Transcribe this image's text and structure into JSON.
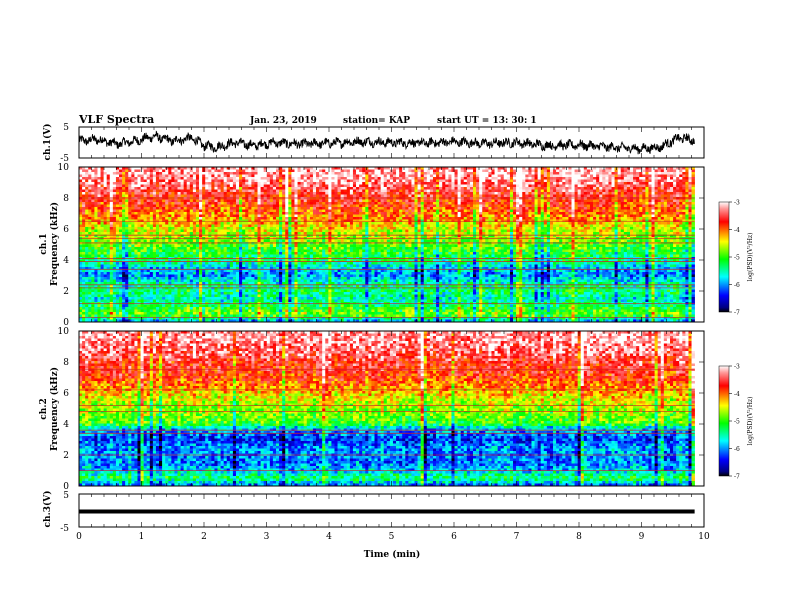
{
  "header": {
    "title": "VLF Spectra",
    "date": "Jan. 23, 2019",
    "station": "station= KAP",
    "start": "start  UT  =   13: 30: 1"
  },
  "chart_data": [
    {
      "type": "line",
      "name": "ch1-waveform",
      "ylabel": "ch.1(V)",
      "ylim": [
        -5,
        5
      ],
      "yticks": [
        "5",
        "-5"
      ],
      "xlim": [
        0,
        10
      ],
      "trend_points": [
        [
          0.0,
          0.5
        ],
        [
          0.3,
          1.0
        ],
        [
          0.6,
          -0.5
        ],
        [
          0.9,
          0.5
        ],
        [
          1.2,
          2.0
        ],
        [
          1.5,
          0.5
        ],
        [
          1.8,
          1.5
        ],
        [
          2.0,
          -1.0
        ],
        [
          2.2,
          -1.5
        ],
        [
          2.5,
          0.0
        ],
        [
          2.8,
          -1.0
        ],
        [
          3.1,
          0.0
        ],
        [
          3.5,
          -0.5
        ],
        [
          4.0,
          -0.2
        ],
        [
          4.5,
          0.3
        ],
        [
          5.0,
          0.0
        ],
        [
          5.5,
          -0.2
        ],
        [
          6.0,
          0.2
        ],
        [
          6.5,
          -0.3
        ],
        [
          7.0,
          0.0
        ],
        [
          7.5,
          -1.0
        ],
        [
          8.0,
          -0.8
        ],
        [
          8.5,
          -1.5
        ],
        [
          9.0,
          -2.0
        ],
        [
          9.3,
          -1.5
        ],
        [
          9.6,
          1.5
        ],
        [
          9.85,
          0.8
        ]
      ]
    },
    {
      "type": "heatmap",
      "name": "ch1-spectrogram",
      "ylabel": "ch.1",
      "ylabel2": "Frequency (kHz)",
      "ylim": [
        0,
        10
      ],
      "yticks": [
        "0",
        "2",
        "4",
        "6",
        "8",
        "10"
      ],
      "xlim": [
        0,
        10
      ],
      "data_end_min": 9.85,
      "colorbar": {
        "label": "log(PSD)(V²/Hz)",
        "range": [
          -7,
          -3
        ],
        "ticks": [
          "-3",
          "-4",
          "-5",
          "-6",
          "-7"
        ]
      },
      "level_profile": [
        [
          0.0,
          -6.0
        ],
        [
          0.5,
          -4.8
        ],
        [
          1.0,
          -5.2
        ],
        [
          1.5,
          -5.6
        ],
        [
          2.0,
          -5.3
        ],
        [
          2.5,
          -5.5
        ],
        [
          3.0,
          -6.0
        ],
        [
          3.5,
          -5.8
        ],
        [
          4.0,
          -5.3
        ],
        [
          4.5,
          -5.1
        ],
        [
          5.0,
          -4.9
        ],
        [
          5.5,
          -4.7
        ],
        [
          6.0,
          -4.5
        ],
        [
          6.5,
          -4.2
        ],
        [
          7.0,
          -4.0
        ],
        [
          7.5,
          -3.8
        ],
        [
          8.0,
          -3.7
        ],
        [
          8.5,
          -3.5
        ],
        [
          9.0,
          -3.3
        ],
        [
          9.5,
          -3.2
        ],
        [
          10.0,
          -3.2
        ]
      ],
      "line_freqs_khz": [
        0.3,
        1.2,
        2.2,
        2.4,
        3.4,
        3.9,
        4.1,
        5.1,
        5.4,
        5.6,
        6.5,
        8.0
      ]
    },
    {
      "type": "heatmap",
      "name": "ch2-spectrogram",
      "ylabel": "ch.2",
      "ylabel2": "Frequency (kHz)",
      "ylim": [
        0,
        10
      ],
      "yticks": [
        "0",
        "2",
        "4",
        "6",
        "8",
        "10"
      ],
      "xlim": [
        0,
        10
      ],
      "data_end_min": 9.85,
      "colorbar": {
        "label": "log(PSD)(V²/Hz)",
        "range": [
          -7,
          -3
        ],
        "ticks": [
          "-3",
          "-4",
          "-5",
          "-6",
          "-7"
        ]
      },
      "level_profile": [
        [
          0.0,
          -6.2
        ],
        [
          0.5,
          -5.2
        ],
        [
          1.0,
          -5.8
        ],
        [
          1.5,
          -6.1
        ],
        [
          2.0,
          -6.0
        ],
        [
          2.5,
          -6.0
        ],
        [
          3.0,
          -6.3
        ],
        [
          3.5,
          -6.0
        ],
        [
          3.8,
          -5.6
        ],
        [
          4.0,
          -5.0
        ],
        [
          4.5,
          -4.8
        ],
        [
          5.0,
          -4.7
        ],
        [
          5.5,
          -4.5
        ],
        [
          6.0,
          -4.3
        ],
        [
          6.5,
          -4.0
        ],
        [
          7.0,
          -3.8
        ],
        [
          7.5,
          -3.7
        ],
        [
          8.0,
          -3.6
        ],
        [
          8.5,
          -3.4
        ],
        [
          9.0,
          -3.3
        ],
        [
          9.5,
          -3.2
        ],
        [
          10.0,
          -3.2
        ]
      ],
      "line_freqs_khz": [
        1.0,
        2.0,
        3.4,
        3.6,
        4.8,
        5.2,
        6.2,
        7.5
      ]
    },
    {
      "type": "line",
      "name": "ch3-waveform",
      "ylabel": "ch.3(V)",
      "ylim": [
        -5,
        5
      ],
      "yticks": [
        "5",
        "-5"
      ],
      "xlim": [
        0,
        10
      ],
      "constant_value": 0,
      "xlabel": "Time (min)",
      "xticks": [
        "0",
        "1",
        "2",
        "3",
        "4",
        "5",
        "6",
        "7",
        "8",
        "9",
        "10"
      ]
    }
  ]
}
